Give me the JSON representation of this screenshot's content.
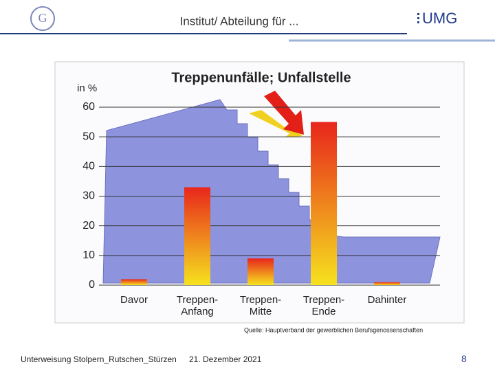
{
  "header": {
    "title": "Institut/ Abteilung für ...",
    "brand": "UMG"
  },
  "chart_data": {
    "type": "bar",
    "title": "Treppenunfälle; Unfallstelle",
    "y_label": "in %",
    "categories": [
      "Davor",
      "Treppen-\nAnfang",
      "Treppen-\nMitte",
      "Treppen-\nEnde",
      "Dahinter"
    ],
    "values": [
      2,
      33,
      9,
      55,
      1
    ],
    "colors": [
      "#e8261c",
      "#f6e21e"
    ],
    "ylim": [
      0,
      60
    ],
    "yticks": [
      0,
      10,
      20,
      30,
      40,
      50,
      60
    ],
    "grid": true,
    "source": "Quelle: Hauptverband der gewerblichen Berufsgenossenschaften"
  },
  "footer": {
    "topic": "Unterweisung Stolpern_Rutschen_Stürzen",
    "date": "21. Dezember 2021",
    "page": "8"
  }
}
